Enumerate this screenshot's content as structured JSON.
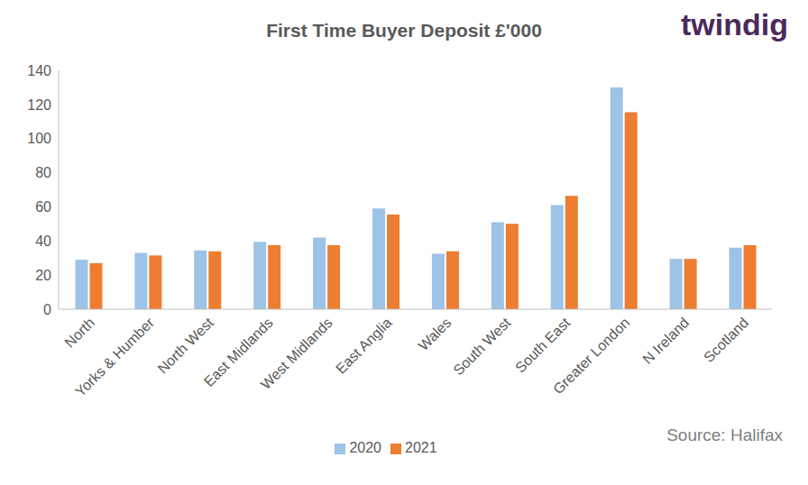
{
  "chart_data": {
    "type": "bar",
    "title": "First Time Buyer Deposit £'000",
    "logo": "twindig",
    "annotations": [
      "Source: Halifax"
    ],
    "categories": [
      "North",
      "Yorks & Humber",
      "North West",
      "East Midlands",
      "West Midlands",
      "East Anglia",
      "Wales",
      "South West",
      "South East",
      "Greater London",
      "N Ireland",
      "Scotland"
    ],
    "series": [
      {
        "name": "2020",
        "color": "#9dc3e6",
        "values": [
          29,
          33,
          34.5,
          39.5,
          42,
          59,
          32.5,
          51,
          61,
          130,
          29.5,
          36
        ]
      },
      {
        "name": "2021",
        "color": "#ed7d31",
        "values": [
          27,
          31.5,
          34,
          37.5,
          37.5,
          55.5,
          34,
          50,
          66.5,
          115.5,
          29.5,
          37.5
        ]
      }
    ],
    "ylim": [
      0,
      140
    ],
    "yticks": [
      0,
      20,
      40,
      60,
      80,
      100,
      120,
      140
    ],
    "grid": false,
    "legend": "bottom"
  }
}
